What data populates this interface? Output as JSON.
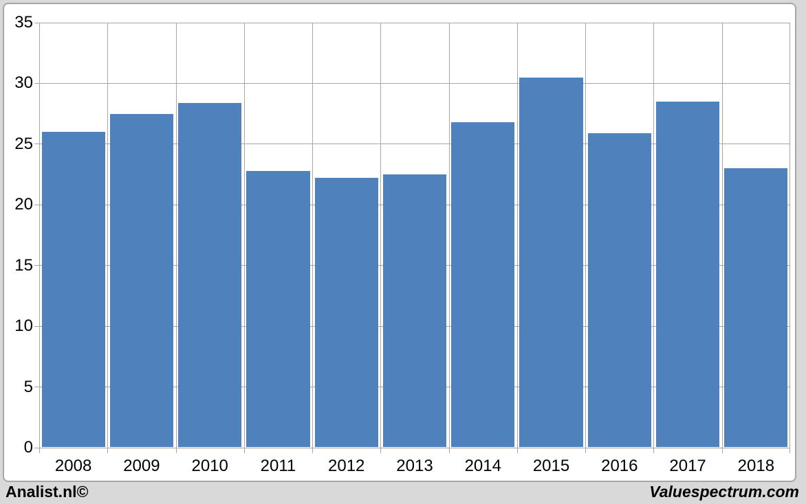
{
  "chart_data": {
    "type": "bar",
    "title": "",
    "xlabel": "",
    "ylabel": "",
    "categories": [
      "2008",
      "2009",
      "2010",
      "2011",
      "2012",
      "2013",
      "2014",
      "2015",
      "2016",
      "2017",
      "2018"
    ],
    "values": [
      26.0,
      27.5,
      28.4,
      22.8,
      22.2,
      22.5,
      26.8,
      30.5,
      25.9,
      28.5,
      23.0
    ],
    "ylim": [
      0,
      35
    ],
    "yticks": [
      0,
      5,
      10,
      15,
      20,
      25,
      30,
      35
    ],
    "grid": "both",
    "legend_position": "none",
    "bar_color": "#4F81BD",
    "gridline_color": "#A6A6A6"
  },
  "footer": {
    "left_label": "Analist.nl©",
    "right_label": "Valuespectrum.com"
  },
  "colors": {
    "page_background": "#D9D9D9",
    "card_background": "#FFFFFF",
    "card_border": "#A6A6A6",
    "text": "#000000"
  }
}
